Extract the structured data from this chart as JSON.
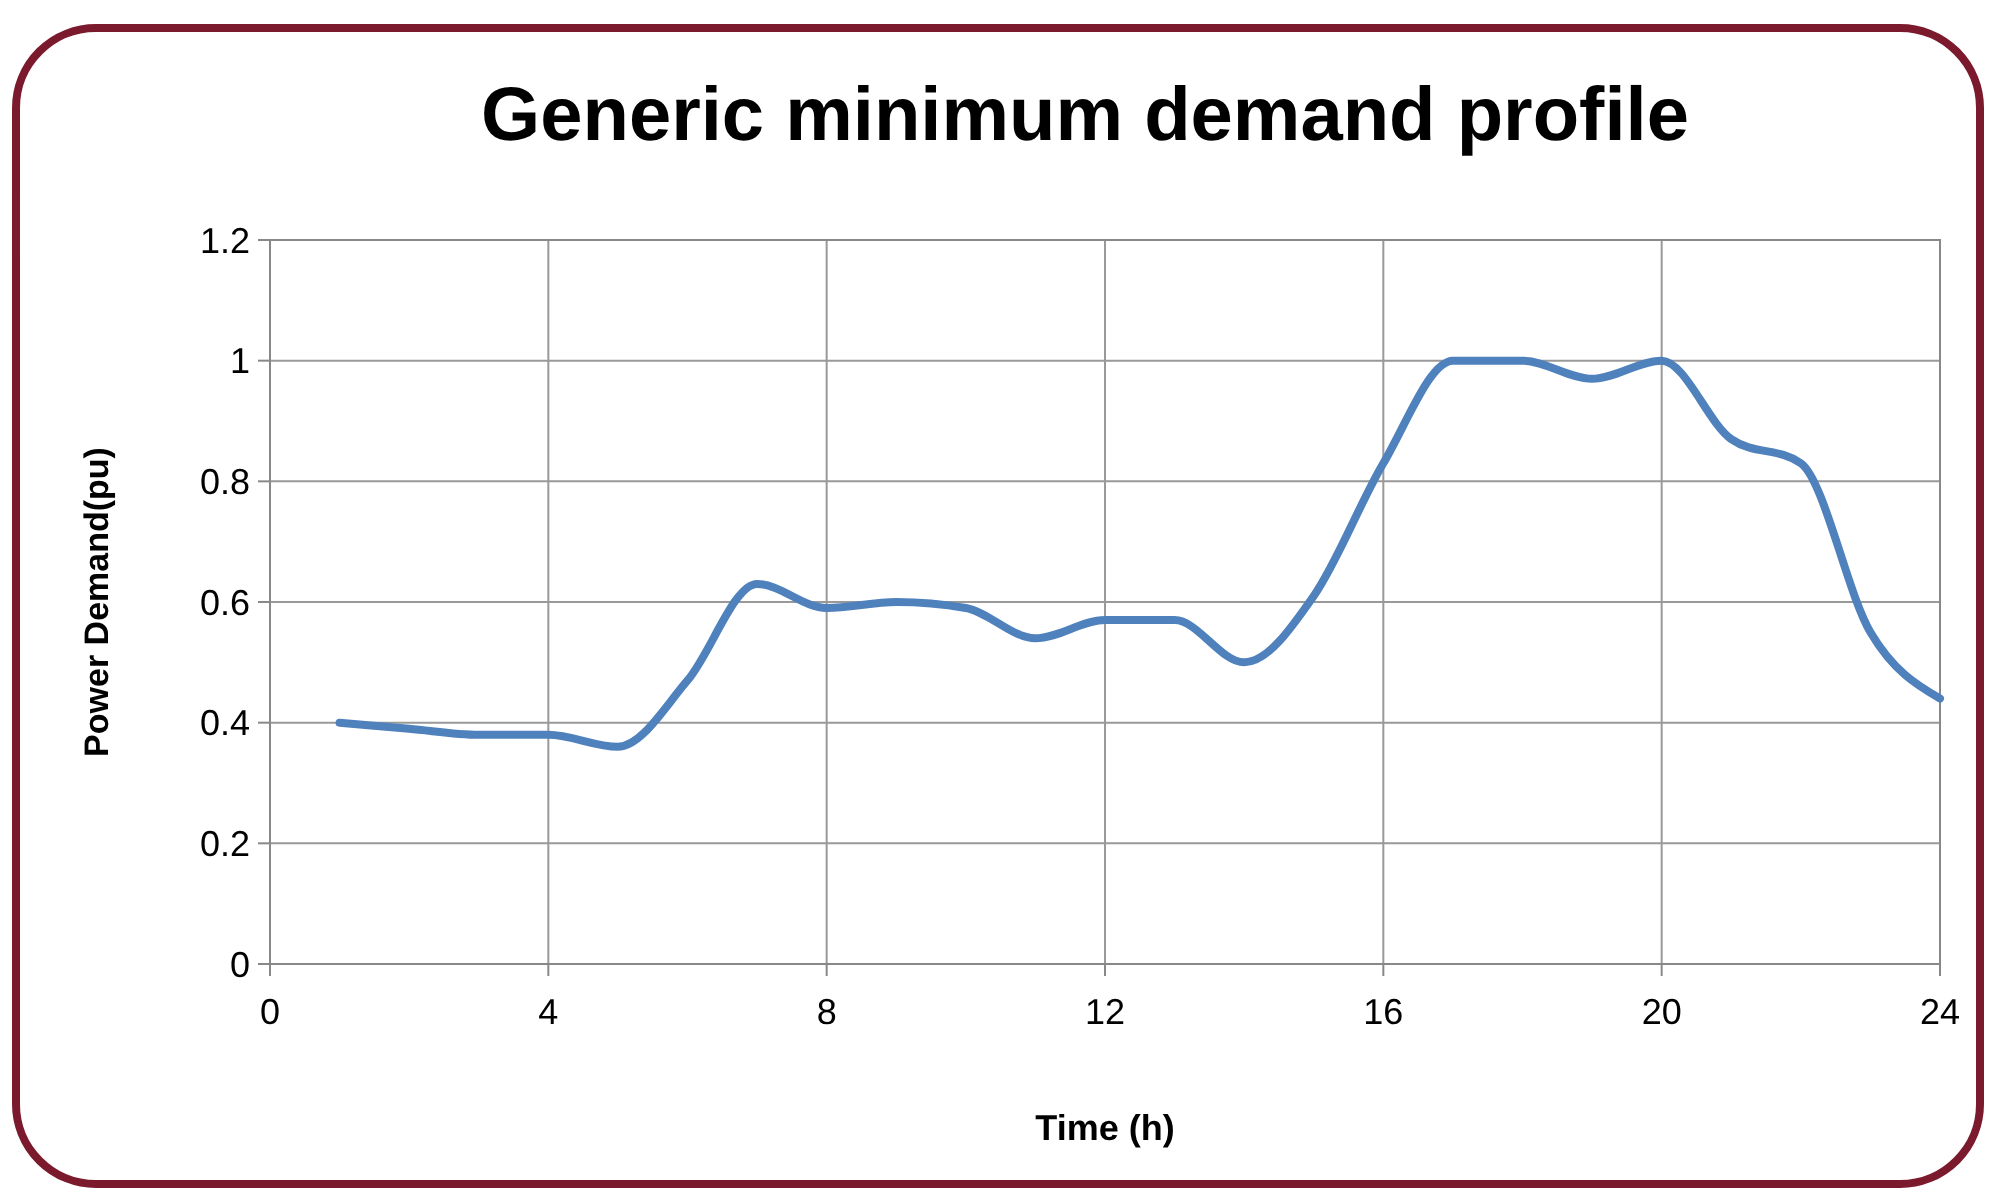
{
  "chart_data": {
    "type": "line",
    "title": "Generic minimum demand profile",
    "xlabel": "Time (h)",
    "ylabel": "Power Demand(pu)",
    "x": [
      1,
      2,
      3,
      4,
      5,
      6,
      7,
      8,
      9,
      10,
      11,
      12,
      13,
      14,
      15,
      16,
      17,
      18,
      19,
      20,
      21,
      22,
      23,
      24
    ],
    "series": [
      {
        "color": "#4f81bd",
        "values": [
          0.4,
          0.39,
          0.38,
          0.38,
          0.36,
          0.47,
          0.63,
          0.59,
          0.6,
          0.59,
          0.54,
          0.57,
          0.57,
          0.5,
          0.61,
          0.83,
          1.0,
          1.0,
          0.97,
          1.0,
          0.87,
          0.83,
          0.55,
          0.44
        ]
      }
    ],
    "xlim": [
      0,
      24
    ],
    "xticks": [
      0,
      4,
      8,
      12,
      16,
      20,
      24
    ],
    "ylim": [
      0,
      1.2
    ],
    "yticks": [
      0,
      {
        "value": 0.2,
        "label": "0.2"
      },
      {
        "value": 0.4,
        "label": "0.4"
      },
      {
        "value": 0.6,
        "label": "0.6"
      },
      {
        "value": 0.8,
        "label": "0.8"
      },
      1,
      {
        "value": 1.2,
        "label": "1.2"
      }
    ],
    "grid": true,
    "marker": "none",
    "line_style": "solid"
  }
}
